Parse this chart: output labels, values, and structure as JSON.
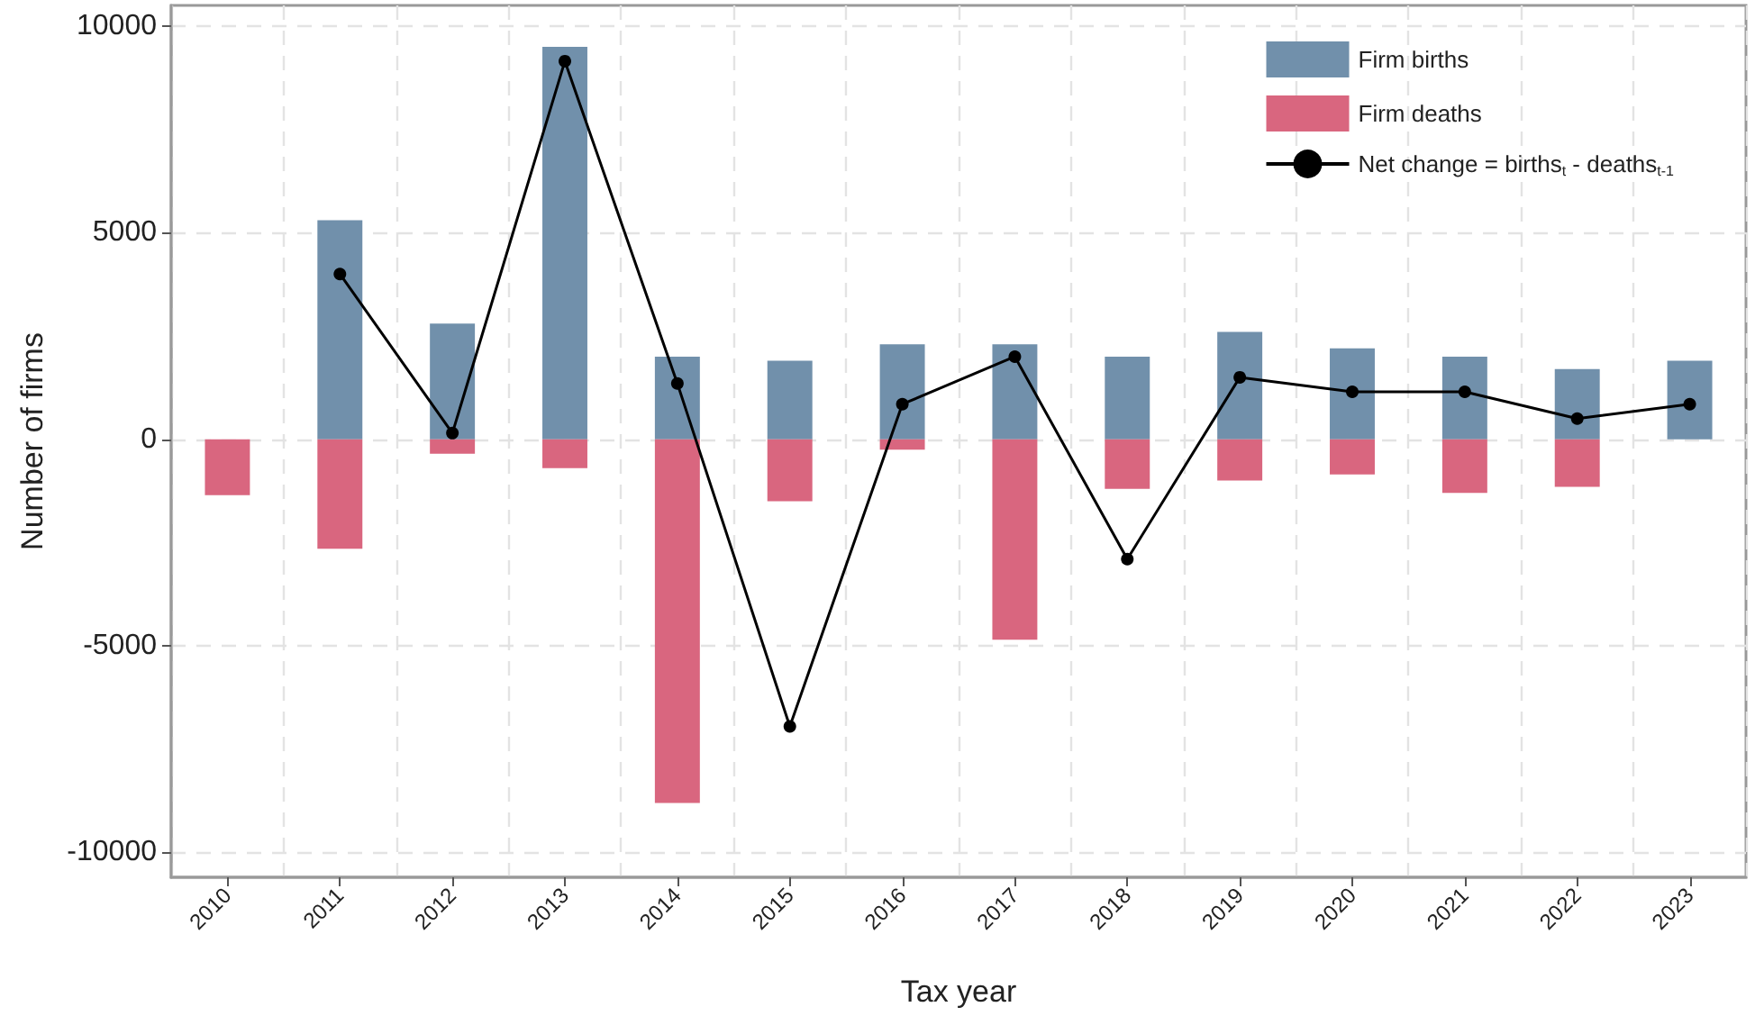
{
  "chart_data": {
    "type": "bar",
    "xlabel": "Tax year",
    "ylabel": "Number of firms",
    "categories": [
      "2010",
      "2011",
      "2012",
      "2013",
      "2014",
      "2015",
      "2016",
      "2017",
      "2018",
      "2019",
      "2020",
      "2021",
      "2022",
      "2023"
    ],
    "series": [
      {
        "name": "Firm births",
        "color": "#7190ab",
        "values": [
          null,
          5300,
          2800,
          9500,
          2000,
          1900,
          2300,
          2300,
          2000,
          2600,
          2200,
          2000,
          1700,
          1900
        ]
      },
      {
        "name": "Firm deaths",
        "color": "#d9667f",
        "values": [
          -1350,
          -2650,
          -350,
          -700,
          -8800,
          -1500,
          -250,
          -4850,
          -1200,
          -1000,
          -850,
          -1300,
          -1150,
          null
        ]
      },
      {
        "name": "Net change = births$_{t}$ - deaths$_{t-1}$",
        "type": "line",
        "color": "#000000",
        "marker": "circle",
        "line_style": "solid",
        "values": [
          null,
          4000,
          150,
          9150,
          1350,
          -6950,
          850,
          2000,
          -2900,
          1500,
          1150,
          1150,
          500,
          850
        ]
      }
    ],
    "ylim": [
      -10600,
      10500
    ],
    "yticks": [
      -10000,
      -5000,
      0,
      5000,
      10000
    ],
    "stacked": true,
    "grid": true,
    "legend": "top right"
  }
}
